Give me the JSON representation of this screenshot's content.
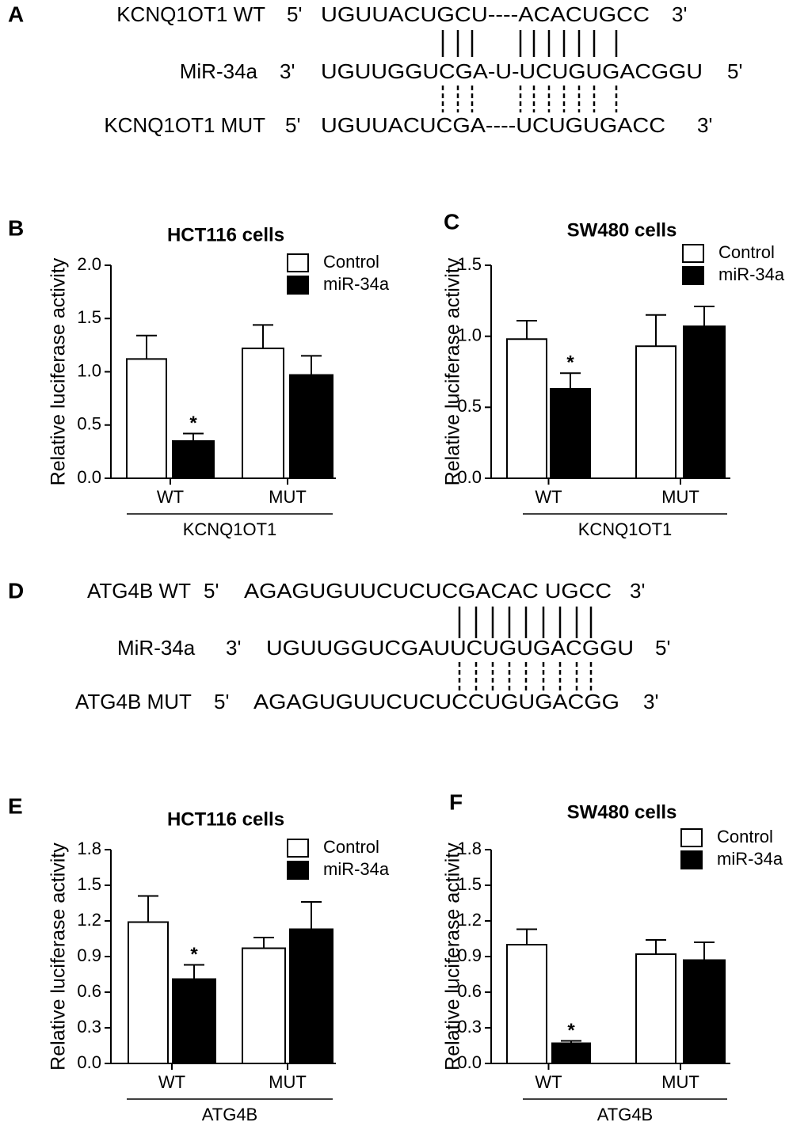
{
  "panel_a": {
    "label": "A",
    "rows": [
      {
        "name": "KCNQ1OT1 WT",
        "left_end": "5'",
        "sequence": "UGUUACUGCU----ACACUGCC",
        "right_end": "3'"
      },
      {
        "name": "MiR-34a",
        "left_end": "3'",
        "sequence": "UGUUGGUCGA-U-UCUGUGACGGU",
        "right_end": "5'"
      },
      {
        "name": "KCNQ1OT1 MUT",
        "left_end": "5'",
        "sequence": "UGUUACUCGA----UCUGUGACC",
        "right_end": "3'"
      }
    ]
  },
  "panel_d": {
    "label": "D",
    "rows": [
      {
        "name": "ATG4B WT",
        "left_end": "5'",
        "sequence": "AGAGUGUUCUCUCGACAC UGCC",
        "right_end": "3'"
      },
      {
        "name": "MiR-34a",
        "left_end": "3'",
        "sequence": "UGUUGGUCGAUUCUGUGACGGU",
        "right_end": "5'"
      },
      {
        "name": "ATG4B MUT",
        "left_end": "5'",
        "sequence": "AGAGUGUUCUCUCCUGUGACGG",
        "right_end": "3'"
      }
    ]
  },
  "chart_data": [
    {
      "type": "bar",
      "panel": "B",
      "title": "HCT116 cells",
      "y_label": "Relative luciferase activity",
      "categories": [
        "WT",
        "MUT"
      ],
      "group_label": "KCNQ1OT1",
      "series": [
        {
          "name": "Control",
          "color": "#ffffff",
          "values": [
            1.12,
            1.22
          ],
          "errors": [
            0.22,
            0.22
          ],
          "significance": [
            null,
            null
          ]
        },
        {
          "name": "miR-34a",
          "color": "#000000",
          "values": [
            0.35,
            0.97
          ],
          "errors": [
            0.07,
            0.18
          ],
          "significance": [
            "*",
            null
          ]
        }
      ],
      "ylim": [
        0,
        2
      ],
      "yticks": [
        {
          "value": 0,
          "label": "0.0"
        },
        0.5,
        {
          "value": 1,
          "label": "1.0"
        },
        1.5,
        {
          "value": 2,
          "label": "2.0"
        }
      ]
    },
    {
      "type": "bar",
      "panel": "C",
      "title": "SW480 cells",
      "y_label": "Relative luciferase activity",
      "categories": [
        "WT",
        "MUT"
      ],
      "group_label": "KCNQ1OT1",
      "series": [
        {
          "name": "Control",
          "color": "#ffffff",
          "values": [
            0.98,
            0.93
          ],
          "errors": [
            0.13,
            0.22
          ],
          "significance": [
            null,
            null
          ]
        },
        {
          "name": "miR-34a",
          "color": "#000000",
          "values": [
            0.63,
            1.07
          ],
          "errors": [
            0.11,
            0.14
          ],
          "significance": [
            "*",
            null
          ]
        }
      ],
      "ylim": [
        0,
        1.5
      ],
      "yticks": [
        {
          "value": 0,
          "label": "0.0"
        },
        0.5,
        {
          "value": 1,
          "label": "1.0"
        },
        1.5
      ]
    },
    {
      "type": "bar",
      "panel": "E",
      "title": "HCT116 cells",
      "y_label": "Relative luciferase activity",
      "categories": [
        "WT",
        "MUT"
      ],
      "group_label": "ATG4B",
      "series": [
        {
          "name": "Control",
          "color": "#ffffff",
          "values": [
            1.19,
            0.97
          ],
          "errors": [
            0.22,
            0.09
          ],
          "significance": [
            null,
            null
          ]
        },
        {
          "name": "miR-34a",
          "color": "#000000",
          "values": [
            0.71,
            1.13
          ],
          "errors": [
            0.12,
            0.23
          ],
          "significance": [
            "*",
            null
          ]
        }
      ],
      "ylim": [
        0,
        1.8
      ],
      "yticks": [
        {
          "value": 0,
          "label": "0.0"
        },
        0.3,
        0.6,
        0.9,
        1.2,
        1.5,
        1.8
      ]
    },
    {
      "type": "bar",
      "panel": "F",
      "title": "SW480 cells",
      "y_label": "Relative luciferase activity",
      "categories": [
        "WT",
        "MUT"
      ],
      "group_label": "ATG4B",
      "series": [
        {
          "name": "Control",
          "color": "#ffffff",
          "values": [
            1.0,
            0.92
          ],
          "errors": [
            0.13,
            0.12
          ],
          "significance": [
            null,
            null
          ]
        },
        {
          "name": "miR-34a",
          "color": "#000000",
          "values": [
            0.17,
            0.87
          ],
          "errors": [
            0.02,
            0.15
          ],
          "significance": [
            "*",
            null
          ]
        }
      ],
      "ylim": [
        0,
        1.8
      ],
      "yticks": [
        {
          "value": 0,
          "label": "0.0"
        },
        0.3,
        0.6,
        0.9,
        1.2,
        1.5,
        1.8
      ]
    }
  ]
}
